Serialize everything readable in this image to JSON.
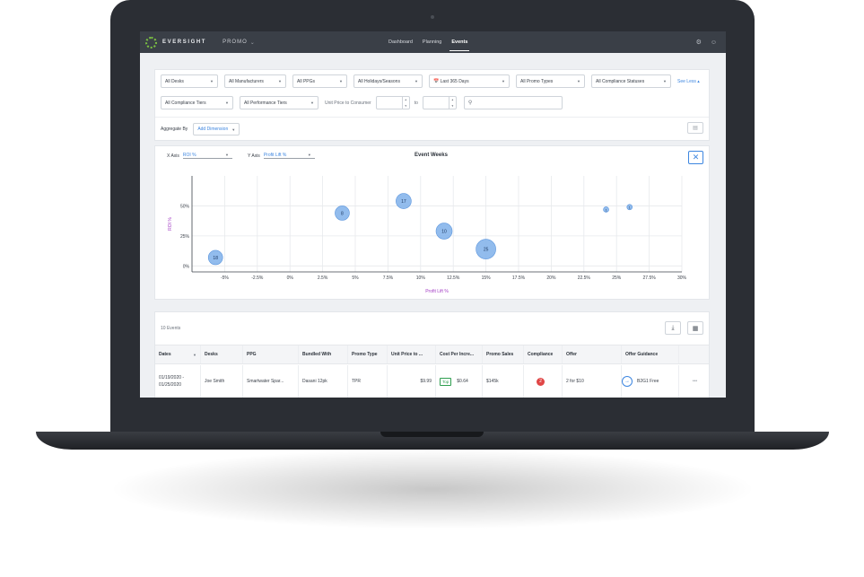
{
  "header": {
    "brand": "EVERSIGHT",
    "module": "PROMO",
    "nav": [
      "Dashboard",
      "Planning",
      "Events"
    ],
    "active_nav": "Events"
  },
  "filters": {
    "row1": [
      {
        "label": "All Desks"
      },
      {
        "label": "All Manufacturers"
      },
      {
        "label": "All PPGs"
      },
      {
        "label": "All Holidays/Seasons"
      },
      {
        "label": "Last 365 Days",
        "icon": "calendar-icon"
      },
      {
        "label": "All Promo Types"
      },
      {
        "label": "All Compliance Statuses"
      }
    ],
    "see_less": "See Less",
    "row2": [
      {
        "label": "All Compliance Tiers"
      },
      {
        "label": "All Performance Tiers"
      }
    ],
    "unit_price_label": "Unit Price to Consumer",
    "to_label": "to",
    "aggregate_by_label": "Aggregate By",
    "add_dimension_label": "Add Dimension"
  },
  "chart_panel": {
    "x_axis_label": "X Axis",
    "x_axis_value": "ROI %",
    "y_axis_label": "Y Axis",
    "y_axis_value": "Profit Lift %"
  },
  "chart_data": {
    "type": "scatter",
    "title": "Event Weeks",
    "xlabel": "Profit Lift %",
    "ylabel": "ROI %",
    "xlim": [
      -7.5,
      30
    ],
    "ylim": [
      -5,
      75
    ],
    "x_ticks": [
      "-5%",
      "-2.5%",
      "0%",
      "2.5%",
      "5%",
      "7.5%",
      "10%",
      "12.5%",
      "15%",
      "17.5%",
      "20%",
      "22.5%",
      "25%",
      "27.5%",
      "30%"
    ],
    "y_ticks": [
      "0%",
      "25%",
      "50%"
    ],
    "grid": true,
    "colors": {
      "bubble": "#7fb0ea",
      "bubble_stroke": "#5b95dd",
      "ylabel": "#a23bc4",
      "xlabel": "#a23bc4"
    },
    "points": [
      {
        "x": -5.7,
        "y": 7,
        "size": 16,
        "label": "18"
      },
      {
        "x": 4.0,
        "y": 44,
        "size": 16,
        "label": "8"
      },
      {
        "x": 8.7,
        "y": 54,
        "size": 17,
        "label": "17"
      },
      {
        "x": 11.8,
        "y": 29,
        "size": 18,
        "label": "10"
      },
      {
        "x": 15.0,
        "y": 14,
        "size": 22,
        "label": "25"
      },
      {
        "x": 24.2,
        "y": 47,
        "size": 6,
        "label": "1"
      },
      {
        "x": 26.0,
        "y": 49,
        "size": 6,
        "label": "1"
      }
    ]
  },
  "table": {
    "count_label": "10 Events",
    "columns": [
      "Dates",
      "Desks",
      "PPG",
      "Bundled With",
      "Promo Type",
      "Unit Price to ...",
      "Cost Per Incre...",
      "Promo Sales",
      "Compliance",
      "Offer",
      "Offer Guidance"
    ],
    "rows": [
      {
        "dates": "01/19/2020 - 01/25/2020",
        "desk": "Joe Smith",
        "ppg": "Smartwater Spar...",
        "bundled": "Dasani 12pk",
        "promo_type": "TPR",
        "unit_price": "$9.99",
        "cost_badge": "Top",
        "cost": "$0.64",
        "promo_sales": "$145k",
        "compliance": "2",
        "offer": "2 for $10",
        "guidance": "B2G1 Free",
        "more": "•••"
      }
    ]
  }
}
